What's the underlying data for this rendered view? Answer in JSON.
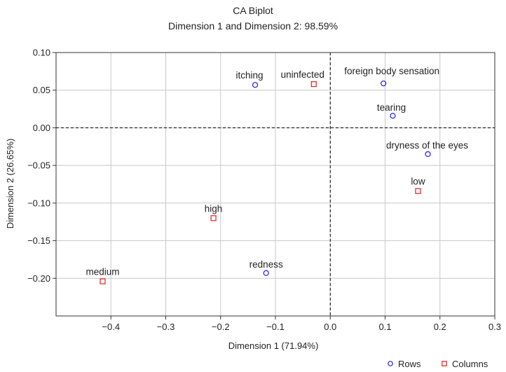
{
  "chart_data": {
    "type": "scatter",
    "title": "CA Biplot",
    "subtitle": "Dimension 1 and Dimension 2: 98.59%",
    "xlabel": "Dimension 1 (71.94%)",
    "ylabel": "Dimension 2 (26.65%)",
    "xlim": [
      -0.5,
      0.3
    ],
    "ylim": [
      -0.25,
      0.1
    ],
    "xticks": [
      -0.4,
      -0.3,
      -0.2,
      -0.1,
      0.0,
      0.1,
      0.2,
      0.3
    ],
    "xtick_labels": [
      "−0.4",
      "−0.3",
      "−0.2",
      "−0.1",
      "0.0",
      "0.1",
      "0.2",
      "0.3"
    ],
    "yticks": [
      0.1,
      0.05,
      0.0,
      -0.05,
      -0.1,
      -0.15,
      -0.2
    ],
    "ytick_labels": [
      "0.10",
      "0.05",
      "0.00",
      "−0.05",
      "−0.10",
      "−0.15",
      "−0.20"
    ],
    "grid": true,
    "reference_lines": {
      "x": 0.0,
      "y": 0.0,
      "style": "dashed"
    },
    "colors": {
      "rows": "#1f1fe0",
      "columns": "#e01f1f",
      "grid": "#c8c8c8"
    },
    "series": [
      {
        "name": "Rows",
        "marker": "circle",
        "points": [
          {
            "label": "itching",
            "x": -0.137,
            "y": 0.057
          },
          {
            "label": "foreign body sensation",
            "x": 0.097,
            "y": 0.059
          },
          {
            "label": "tearing",
            "x": 0.114,
            "y": 0.016
          },
          {
            "label": "dryness of the eyes",
            "x": 0.178,
            "y": -0.035
          },
          {
            "label": "redness",
            "x": -0.117,
            "y": -0.193
          }
        ]
      },
      {
        "name": "Columns",
        "marker": "square",
        "points": [
          {
            "label": "uninfected",
            "x": -0.03,
            "y": 0.058
          },
          {
            "label": "low",
            "x": 0.16,
            "y": -0.084
          },
          {
            "label": "high",
            "x": -0.213,
            "y": -0.12
          },
          {
            "label": "medium",
            "x": -0.415,
            "y": -0.204
          }
        ]
      }
    ],
    "legend": [
      {
        "name": "Rows",
        "marker": "circle"
      },
      {
        "name": "Columns",
        "marker": "square"
      }
    ],
    "legend_position": "bottom-right"
  }
}
